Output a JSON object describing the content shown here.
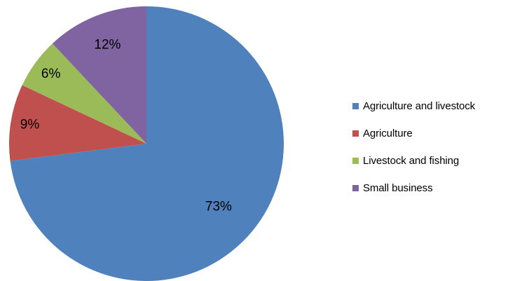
{
  "chart_data": {
    "type": "pie",
    "title": "",
    "legend_position": "right",
    "start_angle": "12 o'clock, clockwise",
    "slices": [
      {
        "label": "Agriculture and livestock",
        "value": 73,
        "display": "73%",
        "color": "#4F81BD"
      },
      {
        "label": "Agriculture",
        "value": 9,
        "display": "9%",
        "color": "#C0504D"
      },
      {
        "label": "Livestock and fishing",
        "value": 6,
        "display": "6%",
        "color": "#9BBB59"
      },
      {
        "label": "Small business",
        "value": 12,
        "display": "12%",
        "color": "#8064A2"
      }
    ]
  }
}
